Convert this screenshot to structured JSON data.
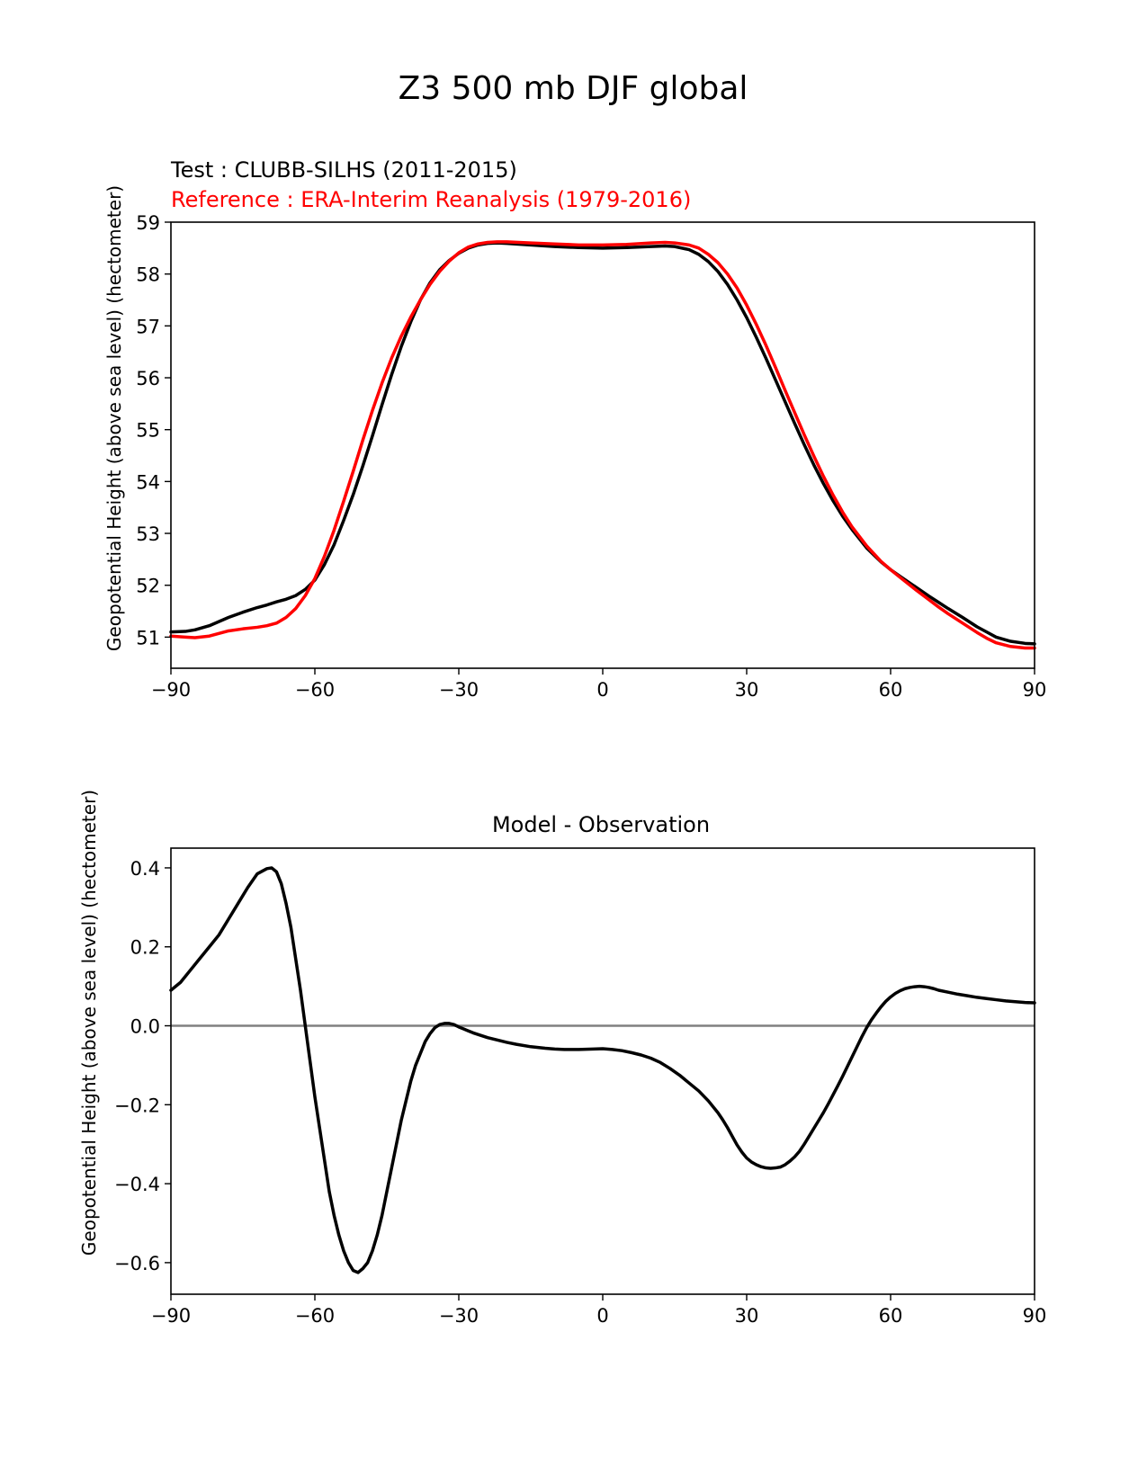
{
  "figure": {
    "title": "Z3 500 mb DJF global"
  },
  "chart_data": [
    {
      "type": "line",
      "title": "",
      "test_label": "Test : CLUBB-SILHS (2011-2015)",
      "reference_label": "Reference : ERA-Interim Reanalysis (1979-2016)",
      "xlabel": "",
      "ylabel": "Geopotential Height (above sea level) (hectometer)",
      "xlim": [
        -90,
        90
      ],
      "ylim": [
        50.4,
        59
      ],
      "xticks": [
        -90,
        -60,
        -30,
        0,
        30,
        60,
        90
      ],
      "xtick_labels": [
        "−90",
        "−60",
        "−30",
        "0",
        "30",
        "60",
        "90"
      ],
      "yticks": [
        51,
        52,
        53,
        54,
        55,
        56,
        57,
        58,
        59
      ],
      "ytick_labels": [
        "51",
        "52",
        "53",
        "54",
        "55",
        "56",
        "57",
        "58",
        "59"
      ],
      "grid": false,
      "series": [
        {
          "role": "test",
          "color": "#000000",
          "x": [
            -90,
            -87,
            -85,
            -82,
            -80,
            -78,
            -75,
            -72,
            -70,
            -68,
            -66,
            -64,
            -62,
            -60,
            -58,
            -56,
            -54,
            -52,
            -50,
            -48,
            -46,
            -44,
            -42,
            -40,
            -38,
            -36,
            -34,
            -32,
            -30,
            -28,
            -26,
            -24,
            -22,
            -20,
            -15,
            -10,
            -5,
            0,
            5,
            10,
            13,
            15,
            18,
            20,
            22,
            24,
            26,
            28,
            30,
            32,
            34,
            36,
            38,
            40,
            42,
            44,
            46,
            48,
            50,
            52,
            55,
            58,
            60,
            62,
            65,
            68,
            70,
            72,
            75,
            78,
            80,
            82,
            85,
            88,
            90
          ],
          "y": [
            51.1,
            51.11,
            51.14,
            51.22,
            51.3,
            51.38,
            51.48,
            51.57,
            51.62,
            51.68,
            51.73,
            51.8,
            51.92,
            52.1,
            52.4,
            52.78,
            53.25,
            53.75,
            54.3,
            54.88,
            55.48,
            56.06,
            56.6,
            57.08,
            57.5,
            57.83,
            58.08,
            58.26,
            58.4,
            58.5,
            58.56,
            58.59,
            58.6,
            58.59,
            58.56,
            58.53,
            58.51,
            58.5,
            58.51,
            58.53,
            58.54,
            58.53,
            58.47,
            58.38,
            58.24,
            58.05,
            57.8,
            57.5,
            57.16,
            56.78,
            56.38,
            55.96,
            55.54,
            55.12,
            54.71,
            54.32,
            53.96,
            53.63,
            53.33,
            53.07,
            52.72,
            52.45,
            52.3,
            52.17,
            51.98,
            51.79,
            51.67,
            51.55,
            51.38,
            51.2,
            51.1,
            51.0,
            50.92,
            50.88,
            50.87
          ]
        },
        {
          "role": "reference",
          "color": "#ff0000",
          "x": [
            -90,
            -87,
            -85,
            -82,
            -80,
            -78,
            -75,
            -72,
            -70,
            -68,
            -66,
            -64,
            -62,
            -60,
            -58,
            -56,
            -54,
            -52,
            -50,
            -48,
            -46,
            -44,
            -42,
            -40,
            -38,
            -36,
            -34,
            -32,
            -30,
            -28,
            -26,
            -24,
            -22,
            -20,
            -15,
            -10,
            -5,
            0,
            5,
            10,
            13,
            15,
            18,
            20,
            22,
            24,
            26,
            28,
            30,
            32,
            34,
            36,
            38,
            40,
            42,
            44,
            46,
            48,
            50,
            52,
            55,
            58,
            60,
            62,
            65,
            68,
            70,
            72,
            75,
            78,
            80,
            82,
            85,
            88,
            90
          ],
          "y": [
            51.02,
            51.0,
            50.99,
            51.02,
            51.07,
            51.12,
            51.16,
            51.19,
            51.22,
            51.27,
            51.38,
            51.55,
            51.8,
            52.13,
            52.56,
            53.06,
            53.62,
            54.2,
            54.8,
            55.37,
            55.9,
            56.38,
            56.8,
            57.17,
            57.5,
            57.8,
            58.05,
            58.25,
            58.41,
            58.52,
            58.58,
            58.61,
            58.62,
            58.62,
            58.6,
            58.58,
            58.56,
            58.56,
            58.57,
            58.6,
            58.61,
            58.6,
            58.56,
            58.5,
            58.38,
            58.22,
            58.0,
            57.73,
            57.4,
            57.03,
            56.63,
            56.2,
            55.76,
            55.33,
            54.9,
            54.49,
            54.1,
            53.74,
            53.41,
            53.12,
            52.76,
            52.46,
            52.3,
            52.15,
            51.93,
            51.72,
            51.58,
            51.45,
            51.27,
            51.09,
            50.98,
            50.89,
            50.82,
            50.79,
            50.79
          ]
        }
      ]
    },
    {
      "type": "line",
      "title": "Model - Observation",
      "xlabel": "",
      "ylabel": "Geopotential Height (above sea level) (hectometer)",
      "xlim": [
        -90,
        90
      ],
      "ylim": [
        -0.68,
        0.45
      ],
      "xticks": [
        -90,
        -60,
        -30,
        0,
        30,
        60,
        90
      ],
      "xtick_labels": [
        "−90",
        "−60",
        "−30",
        "0",
        "30",
        "60",
        "90"
      ],
      "yticks": [
        0.4,
        0.2,
        0.0,
        -0.2,
        -0.4,
        -0.6
      ],
      "ytick_labels": [
        "0.4",
        "0.2",
        "0.0",
        "−0.2",
        "−0.4",
        "−0.6"
      ],
      "grid": false,
      "zero_line_color": "#808080",
      "series": [
        {
          "color": "#000000",
          "x": [
            -90,
            -88,
            -86,
            -84,
            -82,
            -80,
            -78,
            -76,
            -74,
            -72,
            -70,
            -69,
            -68,
            -67,
            -66,
            -65,
            -64,
            -63,
            -62,
            -61,
            -60,
            -59,
            -58,
            -57,
            -56,
            -55,
            -54,
            -53,
            -52,
            -51,
            -50,
            -49,
            -48,
            -47,
            -46,
            -45,
            -44,
            -43,
            -42,
            -41,
            -40,
            -39,
            -38,
            -37,
            -36,
            -35,
            -34,
            -33,
            -32,
            -31,
            -30,
            -29,
            -28,
            -27,
            -26,
            -25,
            -24,
            -22,
            -20,
            -18,
            -15,
            -12,
            -10,
            -8,
            -5,
            -2,
            0,
            2,
            4,
            6,
            8,
            10,
            12,
            14,
            16,
            18,
            20,
            22,
            24,
            25,
            26,
            27,
            28,
            29,
            30,
            31,
            32,
            33,
            34,
            35,
            36,
            37,
            38,
            39,
            40,
            41,
            42,
            43,
            44,
            45,
            46,
            47,
            48,
            49,
            50,
            51,
            52,
            53,
            54,
            55,
            56,
            57,
            58,
            59,
            60,
            61,
            62,
            63,
            64,
            65,
            66,
            67,
            68,
            69,
            70,
            72,
            74,
            76,
            78,
            80,
            82,
            84,
            86,
            88,
            90
          ],
          "y": [
            0.09,
            0.11,
            0.14,
            0.17,
            0.2,
            0.23,
            0.27,
            0.31,
            0.35,
            0.385,
            0.398,
            0.4,
            0.39,
            0.36,
            0.31,
            0.25,
            0.17,
            0.09,
            0.0,
            -0.09,
            -0.18,
            -0.26,
            -0.34,
            -0.42,
            -0.48,
            -0.53,
            -0.57,
            -0.6,
            -0.62,
            -0.625,
            -0.615,
            -0.6,
            -0.57,
            -0.53,
            -0.48,
            -0.42,
            -0.36,
            -0.3,
            -0.24,
            -0.19,
            -0.14,
            -0.1,
            -0.07,
            -0.04,
            -0.02,
            -0.005,
            0.003,
            0.006,
            0.006,
            0.003,
            -0.003,
            -0.008,
            -0.013,
            -0.018,
            -0.022,
            -0.026,
            -0.03,
            -0.036,
            -0.042,
            -0.047,
            -0.053,
            -0.057,
            -0.059,
            -0.06,
            -0.06,
            -0.059,
            -0.058,
            -0.06,
            -0.063,
            -0.068,
            -0.074,
            -0.082,
            -0.093,
            -0.108,
            -0.125,
            -0.145,
            -0.165,
            -0.19,
            -0.22,
            -0.238,
            -0.258,
            -0.28,
            -0.302,
            -0.32,
            -0.335,
            -0.345,
            -0.352,
            -0.357,
            -0.36,
            -0.361,
            -0.36,
            -0.358,
            -0.352,
            -0.343,
            -0.332,
            -0.318,
            -0.3,
            -0.28,
            -0.26,
            -0.24,
            -0.22,
            -0.198,
            -0.175,
            -0.152,
            -0.128,
            -0.103,
            -0.078,
            -0.053,
            -0.028,
            -0.005,
            0.015,
            0.032,
            0.048,
            0.062,
            0.073,
            0.082,
            0.089,
            0.094,
            0.097,
            0.099,
            0.1,
            0.099,
            0.097,
            0.094,
            0.09,
            0.085,
            0.08,
            0.076,
            0.072,
            0.069,
            0.066,
            0.063,
            0.061,
            0.059,
            0.058
          ]
        }
      ]
    }
  ]
}
